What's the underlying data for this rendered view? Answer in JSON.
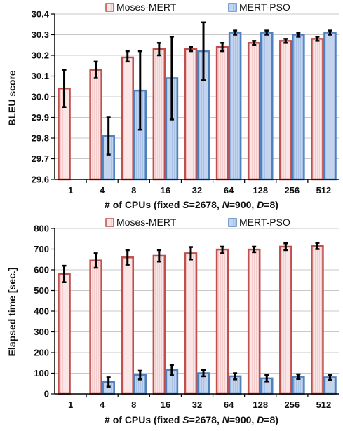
{
  "colors": {
    "moses_fill": "#f4cccc",
    "moses_edge": "#c0504d",
    "pso_fill": "#a9c2e6",
    "pso_edge": "#4f81bd",
    "error_bar": "#000000",
    "grid": "#c8c8c8"
  },
  "chart_data": [
    {
      "type": "bar",
      "categories": [
        "1",
        "4",
        "8",
        "16",
        "32",
        "64",
        "128",
        "256",
        "512"
      ],
      "xlabel": "# of CPUs (fixed S=2678, N=900, D=8)",
      "xlabel_parts": {
        "p1": "# of CPUs (fixed ",
        "s": "S",
        "p2": "=2678, ",
        "n": "N",
        "p3": "=900, ",
        "d": "D",
        "p4": "=8)"
      },
      "ylabel": "BLEU score",
      "ylim": [
        29.6,
        30.4
      ],
      "yticks": [
        "29.6",
        "29.7",
        "29.8",
        "29.9",
        "30.0",
        "30.1",
        "30.2",
        "30.3",
        "30.4"
      ],
      "grid": true,
      "legend": "top",
      "series": [
        {
          "name": "Moses-MERT",
          "values": [
            30.04,
            30.13,
            30.19,
            30.23,
            30.23,
            30.24,
            30.26,
            30.27,
            30.28
          ],
          "err_low": [
            29.95,
            30.09,
            30.17,
            30.2,
            30.22,
            30.22,
            30.25,
            30.26,
            30.27
          ],
          "err_high": [
            30.13,
            30.17,
            30.22,
            30.26,
            30.24,
            30.26,
            30.27,
            30.28,
            30.29
          ]
        },
        {
          "name": "MERT-PSO",
          "values": [
            null,
            29.81,
            30.03,
            30.09,
            30.22,
            30.31,
            30.31,
            30.3,
            30.31
          ],
          "err_low": [
            null,
            29.72,
            29.84,
            29.89,
            30.08,
            30.3,
            30.3,
            30.29,
            30.3
          ],
          "err_high": [
            null,
            29.9,
            30.22,
            30.29,
            30.36,
            30.32,
            30.32,
            30.31,
            30.32
          ]
        }
      ]
    },
    {
      "type": "bar",
      "categories": [
        "1",
        "4",
        "8",
        "16",
        "32",
        "64",
        "128",
        "256",
        "512"
      ],
      "xlabel": "# of CPUs (fixed S=2678, N=900, D=8)",
      "xlabel_parts": {
        "p1": "# of CPUs (fixed ",
        "s": "S",
        "p2": "=2678, ",
        "n": "N",
        "p3": "=900, ",
        "d": "D",
        "p4": "=8)"
      },
      "ylabel": "Elapsed time [sec.]",
      "ylim": [
        0,
        800
      ],
      "yticks": [
        "0",
        "100",
        "200",
        "300",
        "400",
        "500",
        "600",
        "700",
        "800"
      ],
      "grid": true,
      "legend": "top",
      "series": [
        {
          "name": "Moses-MERT",
          "values": [
            580,
            645,
            660,
            668,
            680,
            698,
            698,
            712,
            715
          ],
          "err_low": [
            540,
            610,
            625,
            640,
            650,
            680,
            685,
            695,
            700
          ],
          "err_high": [
            620,
            680,
            695,
            695,
            710,
            712,
            712,
            728,
            730
          ]
        },
        {
          "name": "MERT-PSO",
          "values": [
            null,
            58,
            92,
            115,
            100,
            85,
            75,
            83,
            80
          ],
          "err_low": [
            null,
            35,
            70,
            90,
            85,
            70,
            60,
            72,
            68
          ],
          "err_high": [
            null,
            80,
            112,
            140,
            115,
            100,
            92,
            95,
            92
          ]
        }
      ]
    }
  ]
}
